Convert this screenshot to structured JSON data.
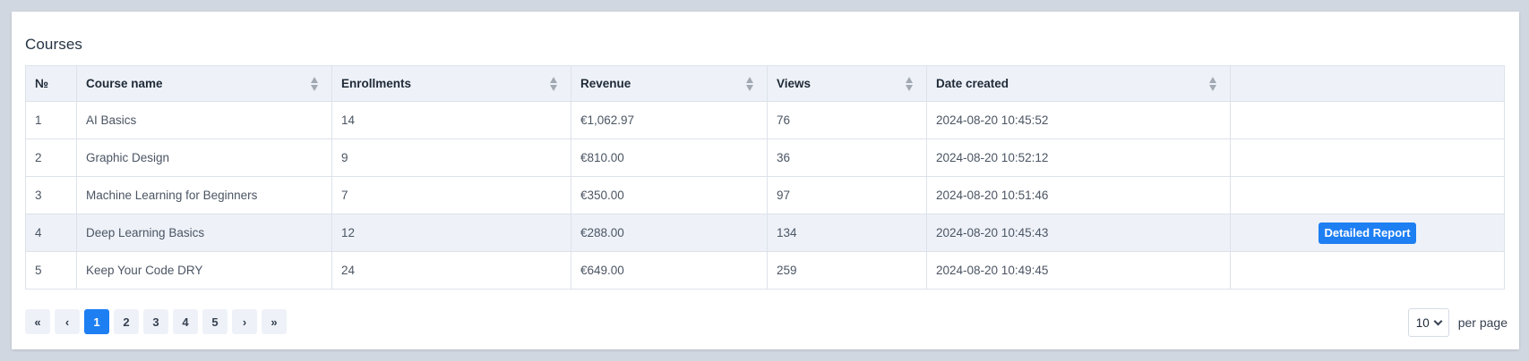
{
  "page": {
    "title": "Courses"
  },
  "table": {
    "headers": [
      "№",
      "Course name",
      "Enrollments",
      "Revenue",
      "Views",
      "Date created",
      ""
    ],
    "rows": [
      {
        "no": "1",
        "name": "AI Basics",
        "enrollments": "14",
        "revenue": "€1,062.97",
        "views": "76",
        "date": "2024-08-20 10:45:52",
        "action": ""
      },
      {
        "no": "2",
        "name": "Graphic Design",
        "enrollments": "9",
        "revenue": "€810.00",
        "views": "36",
        "date": "2024-08-20 10:52:12",
        "action": ""
      },
      {
        "no": "3",
        "name": "Machine Learning for Beginners",
        "enrollments": "7",
        "revenue": "€350.00",
        "views": "97",
        "date": "2024-08-20 10:51:46",
        "action": ""
      },
      {
        "no": "4",
        "name": "Deep Learning Basics",
        "enrollments": "12",
        "revenue": "€288.00",
        "views": "134",
        "date": "2024-08-20 10:45:43",
        "action": "Detailed Report"
      },
      {
        "no": "5",
        "name": "Keep Your Code DRY",
        "enrollments": "24",
        "revenue": "€649.00",
        "views": "259",
        "date": "2024-08-20 10:49:45",
        "action": ""
      }
    ]
  },
  "pagination": {
    "first": "«",
    "prev": "‹",
    "pages": [
      "1",
      "2",
      "3",
      "4",
      "5"
    ],
    "active_page": "1",
    "next": "›",
    "last": "»",
    "per_page_value": "10",
    "per_page_label": "per page"
  },
  "colors": {
    "accent": "#1e7ff3",
    "header_bg": "#eef2f8",
    "page_bg": "#d1d7e1"
  }
}
